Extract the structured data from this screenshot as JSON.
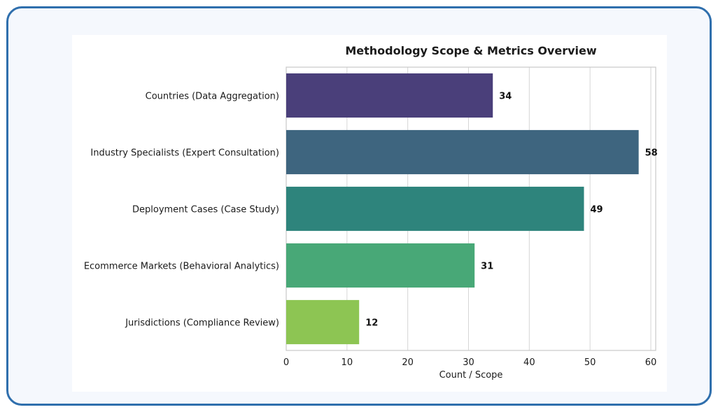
{
  "chart_data": {
    "type": "bar",
    "orientation": "horizontal",
    "title": "Methodology Scope & Metrics Overview",
    "xlabel": "Count / Scope",
    "ylabel": "",
    "xlim": [
      0,
      60
    ],
    "xticks": [
      "0",
      "10",
      "20",
      "30",
      "40",
      "50",
      "60"
    ],
    "grid": true,
    "categories": [
      "Countries (Data Aggregation)",
      "Industry Specialists (Expert Consultation)",
      "Deployment Cases (Case Study)",
      "Ecommerce Markets (Behavioral Analytics)",
      "Jurisdictions (Compliance Review)"
    ],
    "values": [
      34,
      58,
      49,
      31,
      12
    ],
    "data_labels": [
      "34",
      "58",
      "49",
      "31",
      "12"
    ],
    "colors": [
      "#4a3f7a",
      "#3e657f",
      "#2e847c",
      "#48a877",
      "#8dc553"
    ]
  }
}
